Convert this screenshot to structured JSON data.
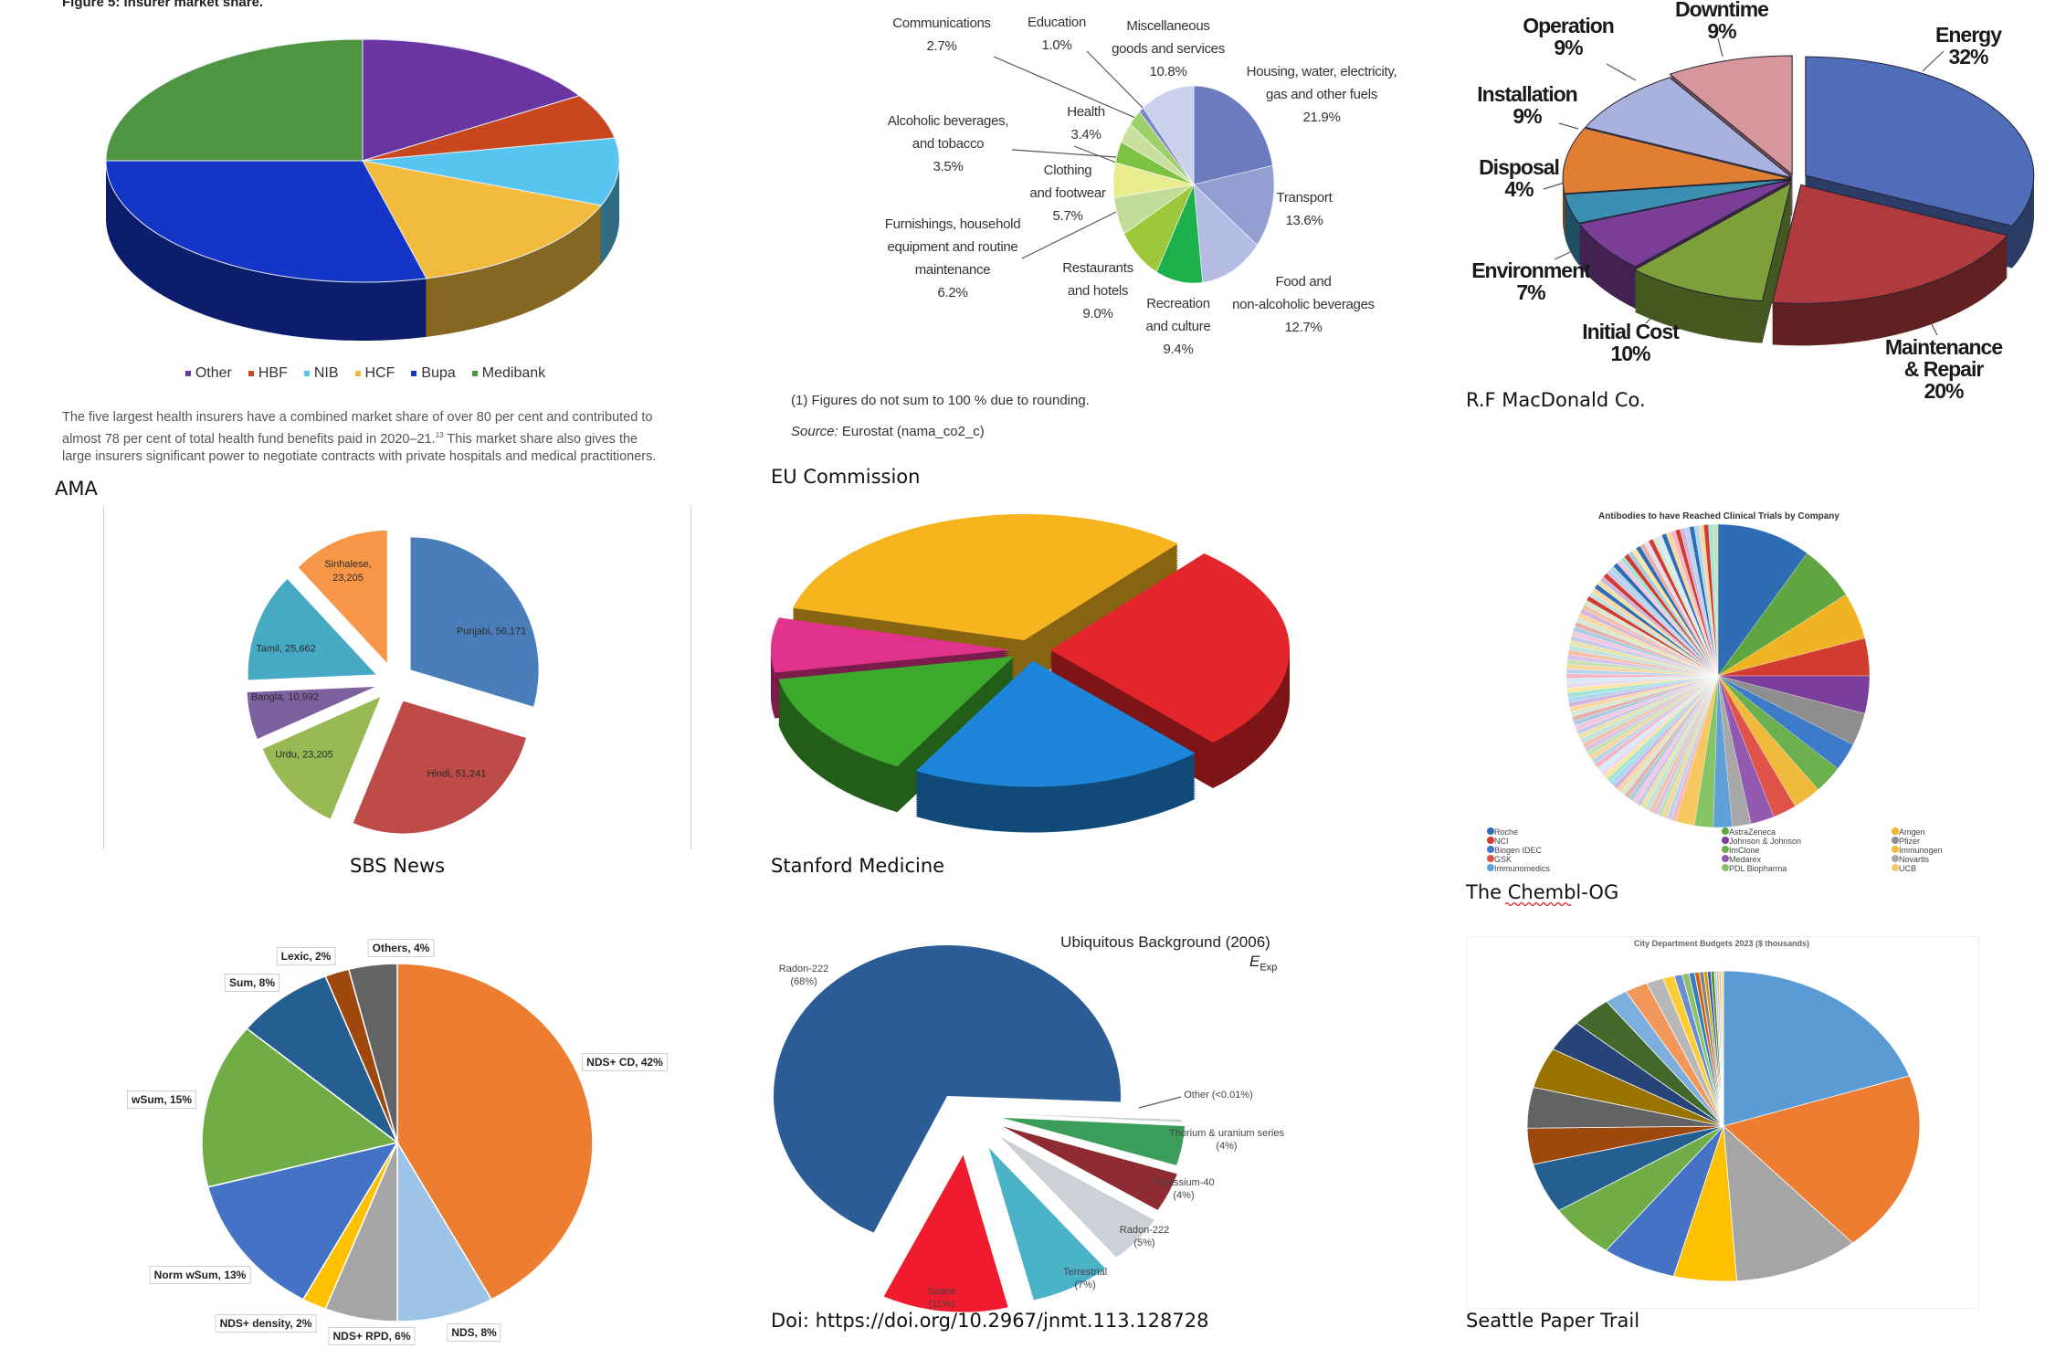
{
  "ama": {
    "figure_title": "Figure 5: Insurer market share.",
    "paragraph": "The five largest health insurers have a combined market share of over 80 per cent and contributed to almost 78 per cent of total health fund benefits paid in 2020–21.",
    "footnote_ref": "13",
    "paragraph_cont": " This market share also gives the large insurers significant power to negotiate contracts with private hospitals and medical practitioners.",
    "caption": "AMA"
  },
  "eu": {
    "footnote": "(1) Figures do not sum to 100 % due to rounding.",
    "source_label": "Source:",
    "source_text": " Eurostat (nama_co2_c)",
    "caption": "EU Commission"
  },
  "rf": {
    "caption": "R.F MacDonald Co."
  },
  "sbs": {
    "caption": "SBS News"
  },
  "stanford": {
    "caption": "Stanford Medicine"
  },
  "chembl": {
    "caption": "The Chembl-OG"
  },
  "nds": {},
  "ub": {
    "title": "Ubiquitous Background (2006)",
    "e_symbol": "E",
    "e_subscript": "Exp",
    "caption": "Doi: https://doi.org/10.2967/jnmt.113.128728"
  },
  "seattle": {
    "caption": "Seattle Paper Trail"
  },
  "chart_data": [
    {
      "type": "pie",
      "style": "3d",
      "title": "Figure 5: Insurer market share.",
      "categories": [
        "Other",
        "HBF",
        "NIB",
        "HCF",
        "Bupa",
        "Medibank"
      ],
      "values": [
        16,
        6,
        9,
        15,
        29,
        25
      ],
      "colors": [
        "#6A35A0",
        "#C8471F",
        "#58C5F0",
        "#F2BB3E",
        "#1535C6",
        "#4F9440"
      ],
      "legend_position": "bottom"
    },
    {
      "type": "pie",
      "style": "2d",
      "categories": [
        "Housing, water, electricity, gas and other fuels",
        "Transport",
        "Food and non-alcoholic beverages",
        "Recreation and culture",
        "Restaurants and hotels",
        "Furnishings, household equipment and routine maintenance",
        "Clothing and footwear",
        "Alcoholic beverages, and tobacco",
        "Health",
        "Communications",
        "Education",
        "Miscellaneous goods and services"
      ],
      "values": [
        21.9,
        13.6,
        12.7,
        9.4,
        9.0,
        6.2,
        5.7,
        3.5,
        3.4,
        2.7,
        1.0,
        10.8
      ],
      "labels": [
        "Housing, water, electricity,\ngas and other fuels\n21.9%",
        "Transport\n13.6%",
        "Food and\nnon-alcoholic beverages\n12.7%",
        "Recreation\nand culture\n9.4%",
        "Restaurants\nand hotels\n9.0%",
        "Furnishings, household\nequipment and routine\nmaintenance\n6.2%",
        "Clothing\nand footwear\n5.7%",
        "Alcoholic beverages,\nand tobacco\n3.5%",
        "Health\n3.4%",
        "Communications\n2.7%",
        "Education\n1.0%",
        "Miscellaneous\ngoods and services\n10.8%"
      ],
      "colors": [
        "#6B7BBE",
        "#939FD3",
        "#B5BCE3",
        "#1DAF4B",
        "#9DC83B",
        "#C4DC9A",
        "#E8EC8C",
        "#7DC242",
        "#C8DFA0",
        "#9ED06A",
        "#7D88C8",
        "#CBD0EC"
      ]
    },
    {
      "type": "pie",
      "style": "3d-exploded",
      "categories": [
        "Energy",
        "Maintenance & Repair",
        "Initial Cost",
        "Environment",
        "Disposal",
        "Installation",
        "Operation",
        "Downtime"
      ],
      "values": [
        32,
        20,
        10,
        7,
        4,
        9,
        9,
        9
      ],
      "labels": [
        "Energy\n32%",
        "Maintenance & Repair\n20%",
        "Initial Cost\n10%",
        "Environment\n7%",
        "Disposal\n4%",
        "Installation\n9%",
        "Operation\n9%",
        "Downtime\n9%"
      ],
      "colors": [
        "#4F6DB8",
        "#B03A3E",
        "#7EA03A",
        "#7A3E97",
        "#3B8FB0",
        "#E07E33",
        "#A9B2DE",
        "#D6969C"
      ]
    },
    {
      "type": "pie",
      "style": "exploded",
      "categories": [
        "Punjabi",
        "Hindi",
        "Urdu",
        "Bangla",
        "Tamil",
        "Sinhalese"
      ],
      "values": [
        56171,
        51241,
        23205,
        10992,
        25662,
        23205
      ],
      "labels": [
        "Punjabi, 56,171",
        "Hindi, 51,241",
        "Urdu, 23,205",
        "Bangla, 10,992",
        "Tamil, 25,662",
        "Sinhalese,\n23,205"
      ],
      "colors": [
        "#4A7EBB",
        "#BE4B48",
        "#98B954",
        "#7D60A0",
        "#46AAC5",
        "#F79646"
      ]
    },
    {
      "type": "pie",
      "style": "3d-exploded",
      "values": [
        27,
        20,
        14,
        7,
        32
      ],
      "colors": [
        "#E3262B",
        "#1E86DA",
        "#3DAA2E",
        "#E0338B",
        "#F6B51E"
      ]
    },
    {
      "type": "pie",
      "style": "2d",
      "title": "Antibodies to have Reached Clinical Trials by Company",
      "categories": [
        "Roche",
        "AstraZeneca",
        "Amgen",
        "NCI",
        "Johnson & Johnson",
        "Pfizer",
        "Biogen IDEC",
        "ImClone",
        "Immunogen",
        "GSK",
        "Medarex",
        "Novartis",
        "Immunomedics",
        "PDL Biopharma",
        "UCB"
      ],
      "values": [
        10,
        6,
        5,
        4,
        4,
        3.5,
        3,
        3,
        3,
        2.5,
        2.5,
        2,
        2,
        2,
        2
      ],
      "colors": [
        "#2E6DB4",
        "#5FA641",
        "#F0B323",
        "#D23B2F",
        "#7B3F9B",
        "#8E8E8E",
        "#3B7BC8",
        "#6BB04E",
        "#F0BA3C",
        "#E0534A",
        "#9358B0",
        "#A8A8A8",
        "#5FA0D6",
        "#85C567",
        "#F6C85F"
      ],
      "legend_order": [
        0,
        3,
        6,
        9,
        12,
        1,
        4,
        7,
        10,
        13,
        2,
        5,
        8,
        11,
        14
      ],
      "legend_position": "bottom"
    },
    {
      "type": "pie",
      "style": "2d",
      "categories": [
        "NDS+ CD",
        "NDS",
        "NDS+ RPD",
        "NDS+ density",
        "Norm wSum",
        "wSum",
        "Sum",
        "Lexic",
        "Others"
      ],
      "values": [
        42,
        8,
        6,
        2,
        13,
        15,
        8,
        2,
        4
      ],
      "labels": [
        "NDS+ CD, 42%",
        "NDS, 8%",
        "NDS+ RPD, 6%",
        "NDS+ density, 2%",
        "Norm wSum, 13%",
        "wSum, 15%",
        "Sum, 8%",
        "Lexic, 2%",
        "Others, 4%"
      ],
      "colors": [
        "#ED7D31",
        "#9DC3E6",
        "#A5A5A5",
        "#FFC000",
        "#4472C4",
        "#70AD47",
        "#255E91",
        "#9E480E",
        "#636363"
      ]
    },
    {
      "type": "pie",
      "style": "exploded",
      "title": "Ubiquitous Background (2006)",
      "categories": [
        "Radon-222",
        "Other",
        "Thorium & uranium series",
        "Potassium-40",
        "Radon-222",
        "Terrestrial",
        "Space"
      ],
      "values": [
        68,
        0.01,
        4,
        4,
        5,
        7,
        11
      ],
      "labels": [
        "Radon-222\n(68%)",
        "Other (<0.01%)",
        "Thorium & uranium series\n(4%)",
        "Potassium-40\n(4%)",
        "Radon-222\n(5%)",
        "Terrestrial\n(7%)",
        "Space\n(11%)"
      ],
      "colors": [
        "#2B5C95",
        "#C8CDD2",
        "#3A9E5A",
        "#8E2B33",
        "#CDD0D6",
        "#4AB3C8",
        "#F01B2D"
      ]
    },
    {
      "type": "pie",
      "style": "2d",
      "title": "City Department Budgets 2023  ($ thousands)",
      "values": [
        21,
        20,
        11,
        5.5,
        6.5,
        6,
        5.5,
        4,
        4.5,
        4.5,
        3.5,
        3.5,
        2,
        2,
        1.5,
        1,
        0.7,
        0.6,
        0.5,
        0.4,
        0.4,
        0.3,
        0.3,
        0.3,
        0.2,
        0.2,
        0.2,
        0.2
      ],
      "colors": [
        "#5B9BD5",
        "#ED7D31",
        "#A5A5A5",
        "#FFC000",
        "#4472C4",
        "#70AD47",
        "#255E91",
        "#9E480E",
        "#636363",
        "#997300",
        "#264478",
        "#43682B",
        "#7CAFDD",
        "#F1975A",
        "#B7B7B7",
        "#FFCD33",
        "#698ED0",
        "#8CC168",
        "#327DC2",
        "#D26012",
        "#848484",
        "#CC9A00",
        "#335AA1",
        "#5A8A39",
        "#9DC3E6",
        "#F4B183",
        "#C9C9C9",
        "#FFD966"
      ]
    }
  ]
}
